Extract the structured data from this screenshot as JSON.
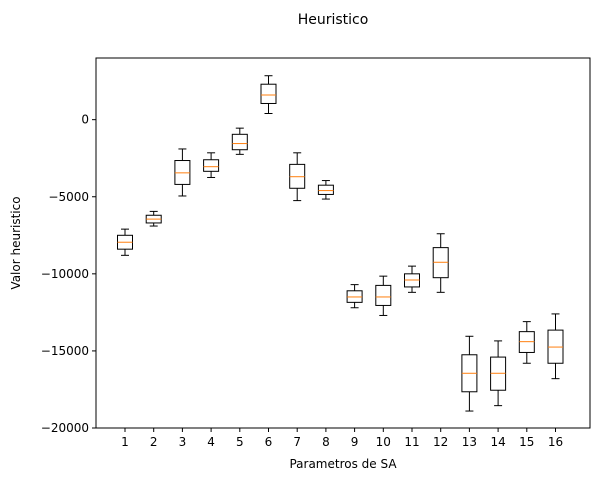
{
  "chart_data": {
    "type": "box",
    "title": "Heuristico",
    "xlabel": "Parametros de SA",
    "ylabel": "Valor heuristico",
    "categories": [
      "1",
      "2",
      "3",
      "4",
      "5",
      "6",
      "7",
      "8",
      "9",
      "10",
      "11",
      "12",
      "13",
      "14",
      "15",
      "16"
    ],
    "ylim": [
      -20000,
      4000
    ],
    "yticks": [
      0,
      -5000,
      -10000,
      -15000,
      -20000
    ],
    "ytick_labels": [
      "0",
      "−5000",
      "−10000",
      "−15000",
      "−20000"
    ],
    "grid": false,
    "series": [
      {
        "boxes": [
          {
            "whisker_low": -8800,
            "q1": -8400,
            "median": -7950,
            "q3": -7500,
            "whisker_high": -7100
          },
          {
            "whisker_low": -6900,
            "q1": -6700,
            "median": -6450,
            "q3": -6200,
            "whisker_high": -5950
          },
          {
            "whisker_low": -4950,
            "q1": -4200,
            "median": -3450,
            "q3": -2650,
            "whisker_high": -1900
          },
          {
            "whisker_low": -3750,
            "q1": -3350,
            "median": -3050,
            "q3": -2600,
            "whisker_high": -2150
          },
          {
            "whisker_low": -2250,
            "q1": -1950,
            "median": -1550,
            "q3": -950,
            "whisker_high": -550
          },
          {
            "whisker_low": 400,
            "q1": 1050,
            "median": 1600,
            "q3": 2300,
            "whisker_high": 2850
          },
          {
            "whisker_low": -5250,
            "q1": -4450,
            "median": -3700,
            "q3": -2900,
            "whisker_high": -2150
          },
          {
            "whisker_low": -5150,
            "q1": -4850,
            "median": -4600,
            "q3": -4250,
            "whisker_high": -3950
          },
          {
            "whisker_low": -12200,
            "q1": -11850,
            "median": -11500,
            "q3": -11100,
            "whisker_high": -10700
          },
          {
            "whisker_low": -12700,
            "q1": -12050,
            "median": -11500,
            "q3": -10750,
            "whisker_high": -10150
          },
          {
            "whisker_low": -11200,
            "q1": -10850,
            "median": -10400,
            "q3": -10000,
            "whisker_high": -9500
          },
          {
            "whisker_low": -11200,
            "q1": -10250,
            "median": -9250,
            "q3": -8300,
            "whisker_high": -7400
          },
          {
            "whisker_low": -18900,
            "q1": -17650,
            "median": -16450,
            "q3": -15250,
            "whisker_high": -14050
          },
          {
            "whisker_low": -18550,
            "q1": -17550,
            "median": -16450,
            "q3": -15400,
            "whisker_high": -14350
          },
          {
            "whisker_low": -15800,
            "q1": -15100,
            "median": -14400,
            "q3": -13750,
            "whisker_high": -13100
          },
          {
            "whisker_low": -16800,
            "q1": -15800,
            "median": -14750,
            "q3": -13650,
            "whisker_high": -12600
          }
        ]
      }
    ],
    "colors": {
      "box": "#000000",
      "median": "#ff7f0e",
      "axes": "#000000",
      "background": "#ffffff"
    }
  }
}
